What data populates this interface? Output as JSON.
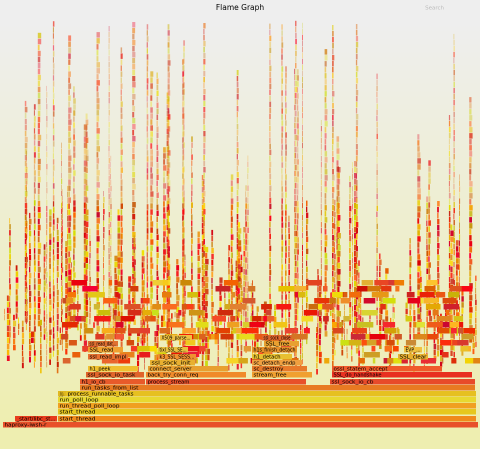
{
  "header": {
    "title": "Flame Graph",
    "search": "Search"
  },
  "frames": [
    "haproxy-iwsh-r",
    "_start/libc_st...",
    "start_thread",
    "start_thread",
    "run_thread_poll_loop",
    "run_poll_loop",
    "_do_p...",
    "process_runnable_tasks",
    "run_tasks_from_list",
    "h1_io_cb",
    "process_stream",
    "ssl_sock_io_cb",
    "ssl_sock_io_task",
    "back_try_conn_req",
    "stream_free",
    "SSL_do_handshake",
    "h1_peek",
    "connect_server",
    "sc_destroy",
    "ossl_statem_accept",
    "ssl_sock_init",
    "sc_detach_endp",
    "ssl_read_impl",
    "h1_detach",
    "k3_SSL_SESS...",
    "h1s_finish_detach",
    "SSL_read",
    "tixl_SSL_SE...",
    "SSL_free",
    "ssl_read_dat...",
    "X509_parse...",
    "ssl_sock_close",
    "SSL_clear",
    "EVP_..."
  ]
}
